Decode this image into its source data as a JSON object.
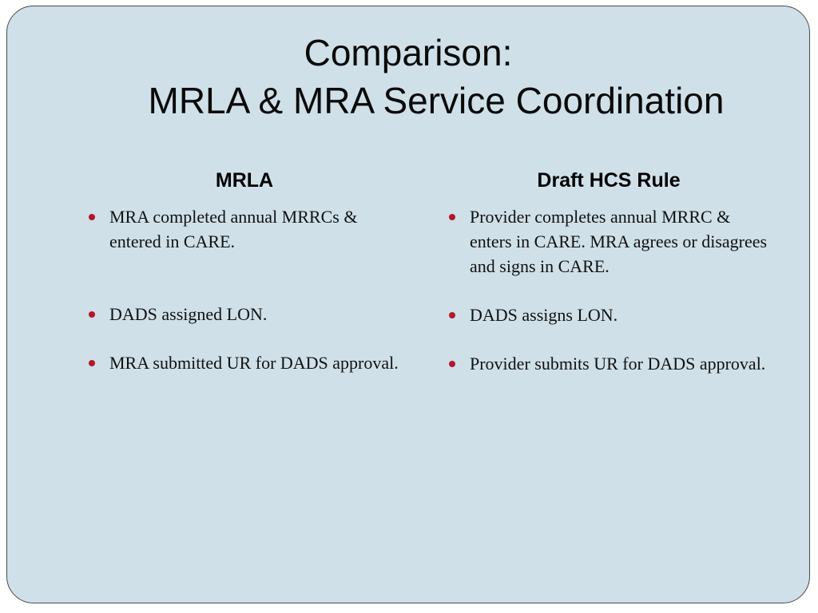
{
  "slide": {
    "title_line1": "Comparison:",
    "title_line2": "MRLA & MRA Service Coordination",
    "bullet_color": "#b5162b",
    "background_color": "#cfe0e8"
  },
  "columns": {
    "left": {
      "heading": "MRLA",
      "bullets": [
        "MRA completed annual MRRCs & entered in CARE.",
        "DADS assigned LON.",
        "MRA submitted UR for DADS approval."
      ]
    },
    "right": {
      "heading": "Draft HCS Rule",
      "bullets": [
        "Provider completes annual MRRC & enters in CARE.  MRA agrees or disagrees and signs in CARE.",
        "DADS assigns LON.",
        "Provider submits UR for DADS approval."
      ]
    }
  }
}
